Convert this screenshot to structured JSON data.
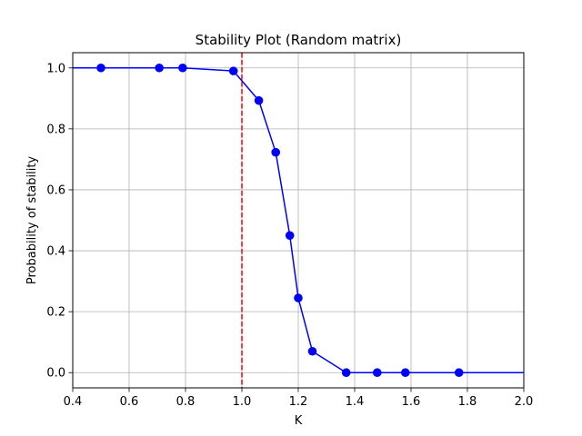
{
  "chart_data": {
    "type": "line",
    "title": "Stability Plot (Random matrix)",
    "xlabel": "K",
    "ylabel": "Probability of stability",
    "xlim": [
      0.4,
      2.0
    ],
    "ylim": [
      -0.05,
      1.05
    ],
    "xticks": [
      0.4,
      0.6,
      0.8,
      1.0,
      1.2,
      1.4,
      1.6,
      1.8,
      2.0
    ],
    "xtick_labels": [
      "0.4",
      "0.6",
      "0.8",
      "1.0",
      "1.2",
      "1.4",
      "1.6",
      "1.8",
      "2.0"
    ],
    "yticks": [
      0.0,
      0.2,
      0.4,
      0.6,
      0.8,
      1.0
    ],
    "ytick_labels": [
      "0.0",
      "0.2",
      "0.4",
      "0.6",
      "0.8",
      "1.0"
    ],
    "grid": true,
    "series": [
      {
        "color": "#0000ff",
        "marker": "circle",
        "x": [
          0.4,
          0.5,
          0.707,
          0.79,
          0.97,
          1.06,
          1.12,
          1.17,
          1.2,
          1.25,
          1.37,
          1.48,
          1.58,
          1.77,
          2.0
        ],
        "y": [
          1.0,
          1.0,
          1.0,
          1.0,
          0.99,
          0.893,
          0.723,
          0.45,
          0.245,
          0.07,
          0.0,
          0.0,
          0.0,
          0.0,
          0.0
        ],
        "markers": [
          false,
          true,
          true,
          true,
          true,
          true,
          true,
          true,
          true,
          true,
          true,
          true,
          true,
          true,
          false
        ]
      }
    ],
    "reference_lines": [
      {
        "orientation": "vertical",
        "x": 1.0,
        "color": "#ff0000",
        "style": "dashed"
      }
    ]
  }
}
